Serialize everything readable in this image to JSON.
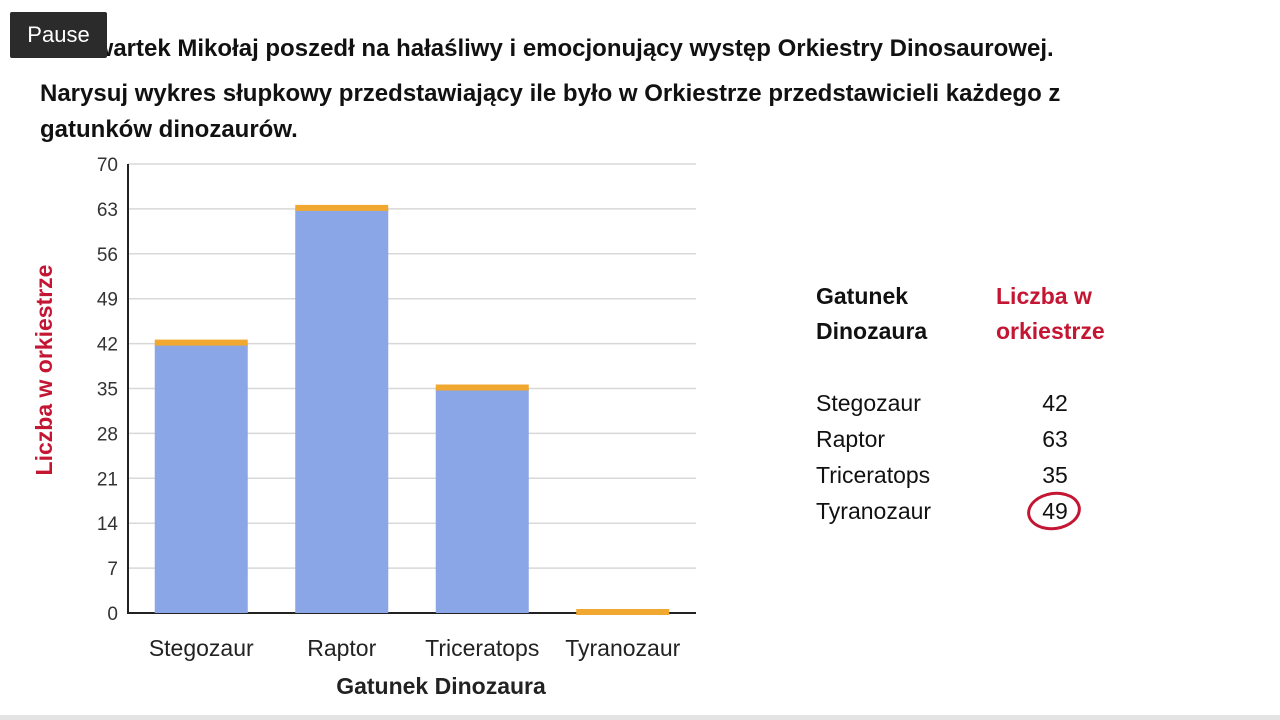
{
  "player": {
    "pause_label": "Pause"
  },
  "problem": {
    "line1": "W czwartek Mikołaj poszedł na hałaśliwy i emocjonujący występ Orkiestry Dinosaurowej.",
    "line2": "Narysuj wykres słupkowy przedstawiający ile było w Orkiestrze przedstawicieli każdego z",
    "line3": "gatunków dinozaurów."
  },
  "chart_data": {
    "type": "bar",
    "categories": [
      "Stegozaur",
      "Raptor",
      "Triceratops",
      "Tyranozaur"
    ],
    "values": [
      42,
      63,
      35,
      0
    ],
    "xlabel": "Gatunek Dinozaura",
    "ylabel": "Liczba w orkiestrze",
    "ylim": [
      0,
      70
    ],
    "yticks": [
      0,
      7,
      14,
      21,
      28,
      35,
      42,
      49,
      56,
      63,
      70
    ],
    "grid": true,
    "colors": {
      "bar": "#8aa6e6",
      "bar_top": "#f0a830",
      "ylabel": "#c41633"
    }
  },
  "table": {
    "header_species": [
      "Gatunek",
      "Dinozaura"
    ],
    "header_count": [
      "Liczba w",
      "orkiestrze"
    ],
    "rows": [
      {
        "species": "Stegozaur",
        "count": "42"
      },
      {
        "species": "Raptor",
        "count": "63"
      },
      {
        "species": "Triceratops",
        "count": "35"
      },
      {
        "species": "Tyranozaur",
        "count": "49"
      }
    ],
    "circled_row": 3,
    "accent_color": "#c41633"
  }
}
